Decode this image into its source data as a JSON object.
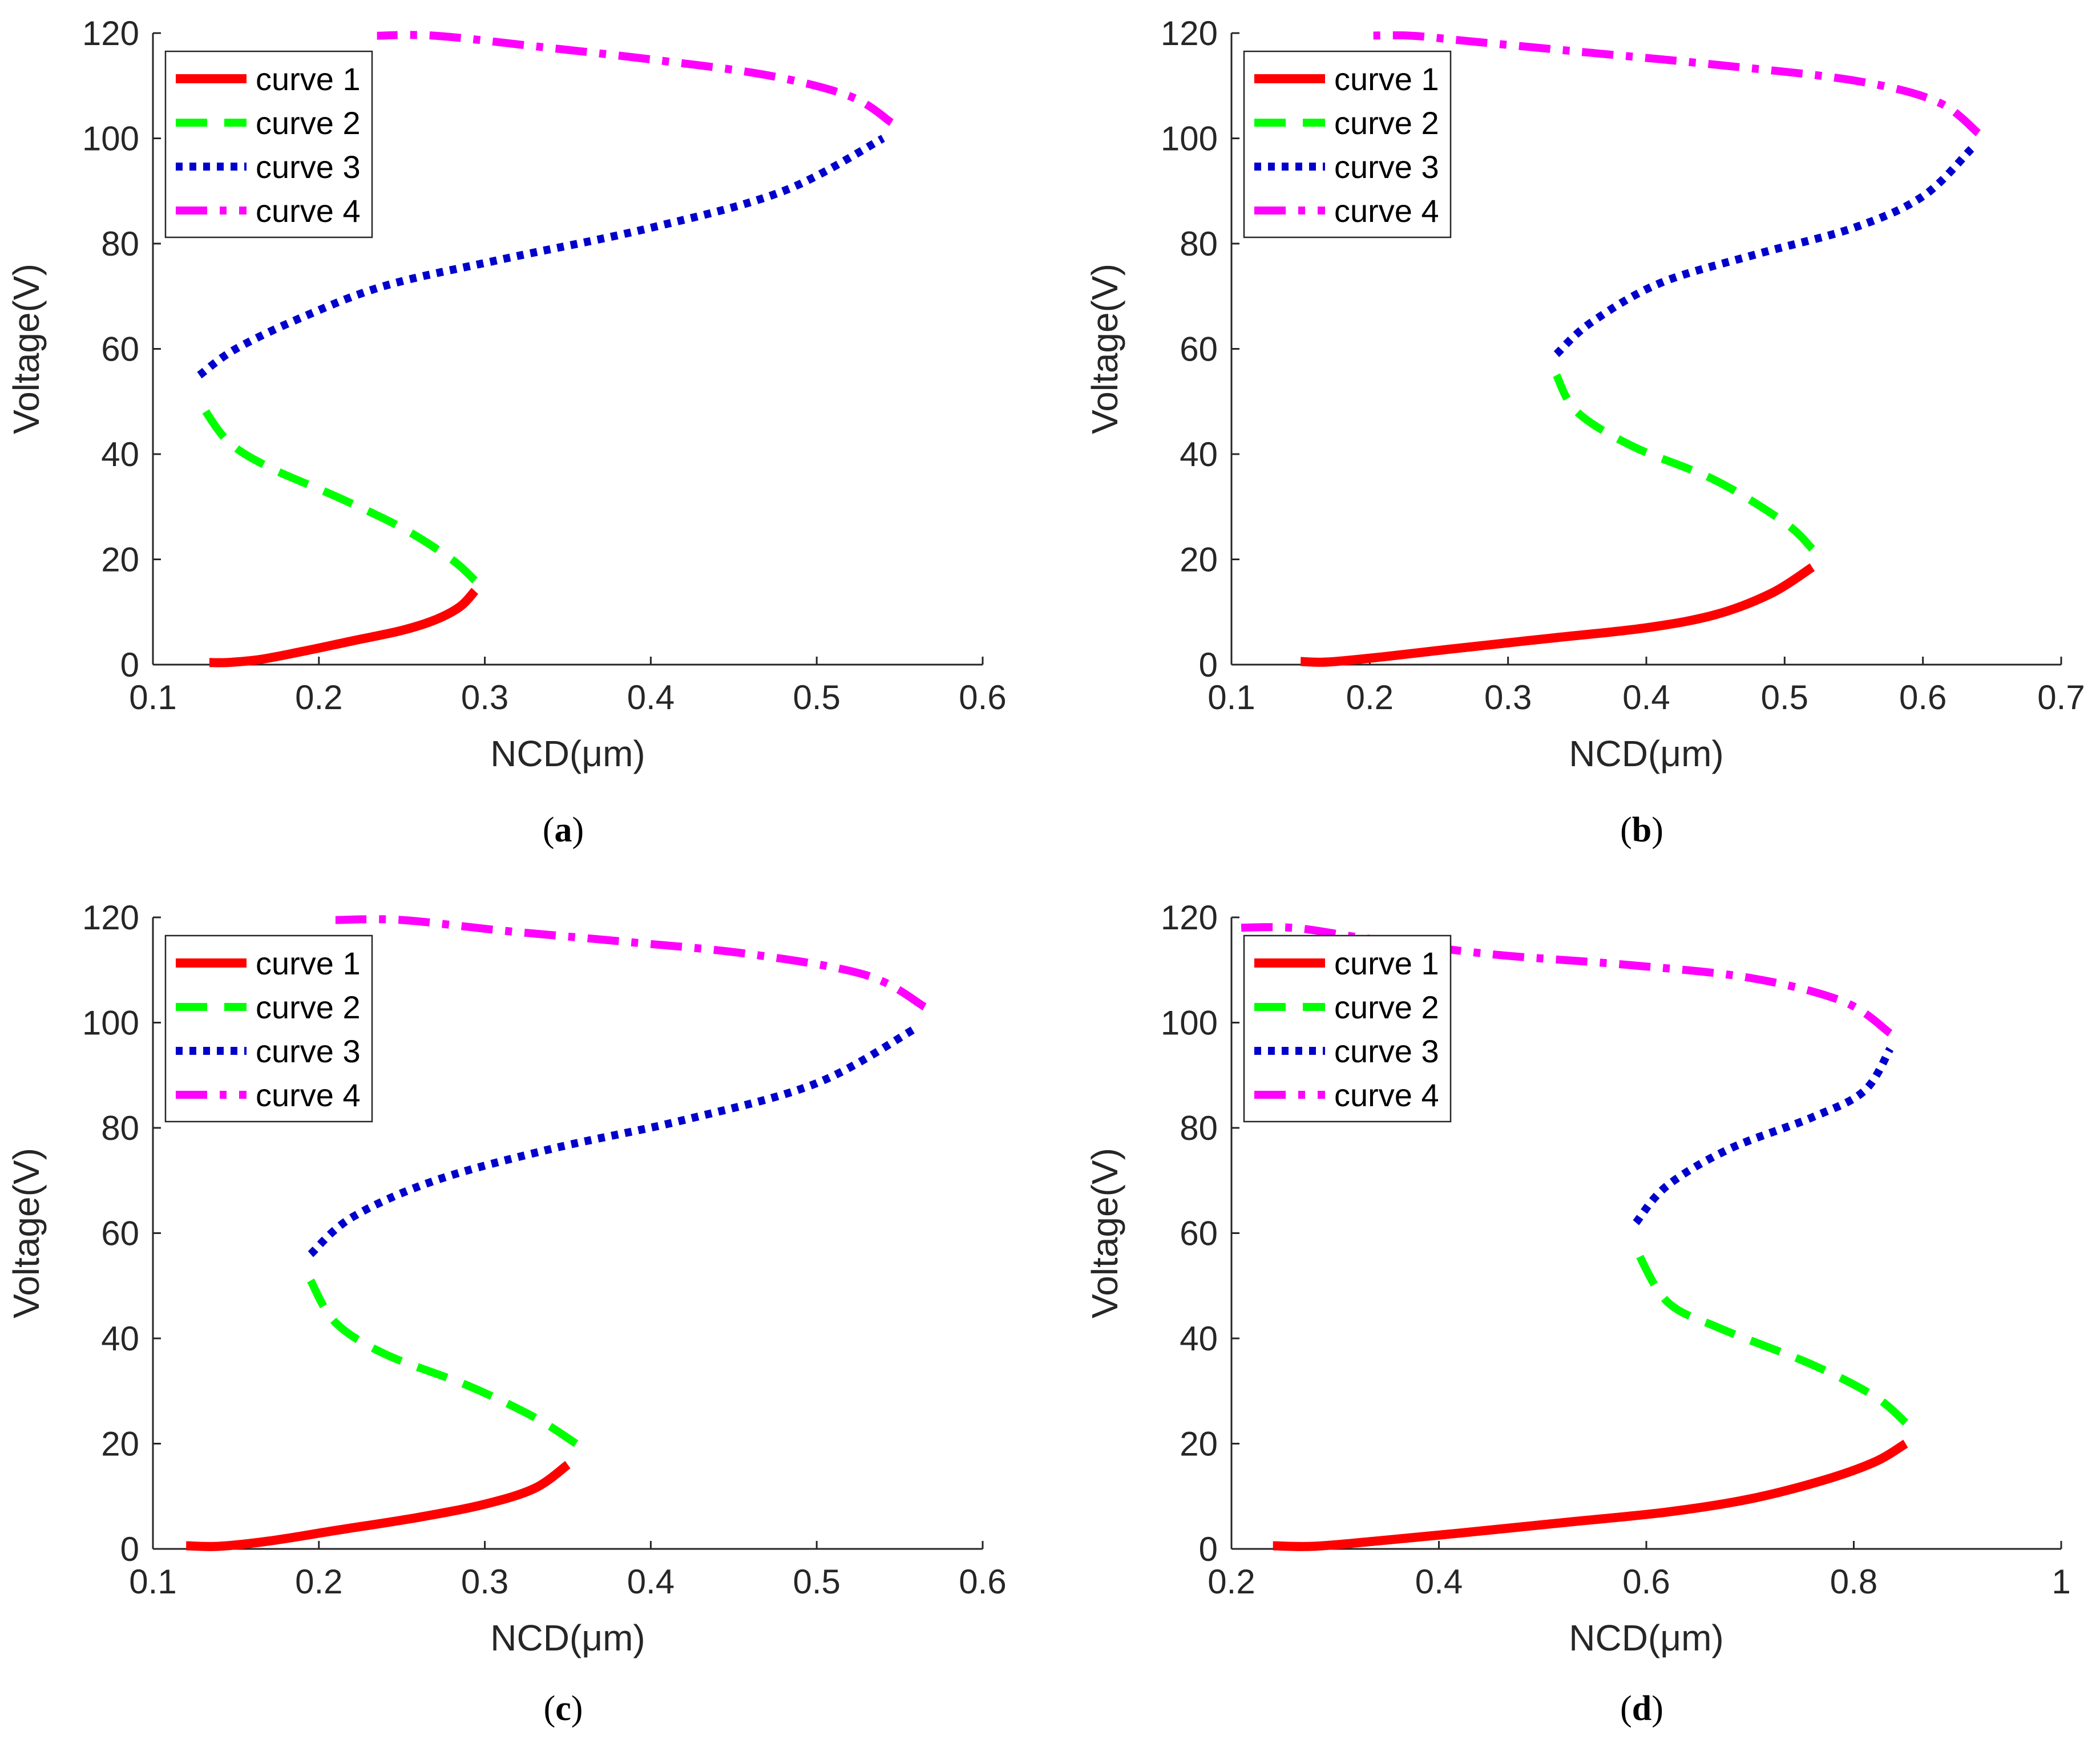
{
  "figure": {
    "axis_color": "#262626"
  },
  "chart_data": [
    {
      "id": "a",
      "type": "line",
      "caption": "a",
      "xlabel": "NCD(μm)",
      "ylabel": "Voltage(V)",
      "xlim": [
        0.1,
        0.6
      ],
      "ylim": [
        0,
        120
      ],
      "xticks": [
        0.1,
        0.2,
        0.3,
        0.4,
        0.5,
        0.6
      ],
      "xtick_labels": [
        "0.1",
        "0.2",
        "0.3",
        "0.4",
        "0.5",
        "0.6"
      ],
      "yticks": [
        0,
        20,
        40,
        60,
        80,
        100,
        120
      ],
      "ytick_labels": [
        "0",
        "20",
        "40",
        "60",
        "80",
        "100",
        "120"
      ],
      "legend_position": "top-left",
      "series": [
        {
          "name": "curve 1",
          "color": "#ff0000",
          "style": "solid",
          "x": [
            0.134,
            0.145,
            0.165,
            0.19,
            0.22,
            0.25,
            0.27,
            0.285,
            0.294
          ],
          "y": [
            0.4,
            0.4,
            1.0,
            2.5,
            4.5,
            6.5,
            8.5,
            11.0,
            14.0
          ]
        },
        {
          "name": "curve 2",
          "color": "#00ff00",
          "style": "dashed",
          "x": [
            0.294,
            0.28,
            0.25,
            0.21,
            0.17,
            0.145,
            0.128
          ],
          "y": [
            16.0,
            20.0,
            26.0,
            32.0,
            37.5,
            42.5,
            50.0
          ]
        },
        {
          "name": "curve 3",
          "color": "#0000cc",
          "style": "dotted",
          "x": [
            0.128,
            0.15,
            0.19,
            0.24,
            0.31,
            0.4,
            0.48,
            0.54
          ],
          "y": [
            55.0,
            60.0,
            66.0,
            72.0,
            77.0,
            83.0,
            90.0,
            100.0
          ]
        },
        {
          "name": "curve 4",
          "color": "#ff00ff",
          "style": "dashdot",
          "x": [
            0.545,
            0.52,
            0.47,
            0.4,
            0.33,
            0.27,
            0.235
          ],
          "y": [
            103.0,
            108.0,
            112.0,
            115.0,
            117.5,
            119.5,
            119.5
          ]
        }
      ]
    },
    {
      "id": "b",
      "type": "line",
      "caption": "b",
      "xlabel": "NCD(μm)",
      "ylabel": "Voltage(V)",
      "xlim": [
        0.1,
        0.7
      ],
      "ylim": [
        0,
        120
      ],
      "xticks": [
        0.1,
        0.2,
        0.3,
        0.4,
        0.5,
        0.6,
        0.7
      ],
      "xtick_labels": [
        "0.1",
        "0.2",
        "0.3",
        "0.4",
        "0.5",
        "0.6",
        "0.7"
      ],
      "yticks": [
        0,
        20,
        40,
        60,
        80,
        100,
        120
      ],
      "ytick_labels": [
        "0",
        "20",
        "40",
        "60",
        "80",
        "100",
        "120"
      ],
      "legend_position": "top-left",
      "series": [
        {
          "name": "curve 1",
          "color": "#ff0000",
          "style": "solid",
          "x": [
            0.15,
            0.17,
            0.21,
            0.26,
            0.33,
            0.4,
            0.45,
            0.49,
            0.52
          ],
          "y": [
            0.6,
            0.5,
            1.5,
            3.0,
            5.0,
            7.0,
            9.5,
            13.5,
            18.5
          ]
        },
        {
          "name": "curve 2",
          "color": "#00ff00",
          "style": "dashed",
          "x": [
            0.52,
            0.5,
            0.45,
            0.39,
            0.35,
            0.335
          ],
          "y": [
            22.0,
            27.0,
            35.0,
            41.5,
            48.0,
            55.0
          ]
        },
        {
          "name": "curve 3",
          "color": "#0000cc",
          "style": "dotted",
          "x": [
            0.335,
            0.36,
            0.41,
            0.48,
            0.55,
            0.6,
            0.635
          ],
          "y": [
            59.0,
            65.0,
            72.5,
            78.0,
            83.0,
            89.0,
            98.0
          ]
        },
        {
          "name": "curve 4",
          "color": "#ff00ff",
          "style": "dashdot",
          "x": [
            0.64,
            0.61,
            0.55,
            0.45,
            0.35,
            0.27,
            0.23,
            0.195
          ],
          "y": [
            101.0,
            107.0,
            111.0,
            114.0,
            116.5,
            118.5,
            119.5,
            119.5
          ]
        }
      ]
    },
    {
      "id": "c",
      "type": "line",
      "caption": "c",
      "xlabel": "NCD(μm)",
      "ylabel": "Voltage(V)",
      "xlim": [
        0.1,
        0.6
      ],
      "ylim": [
        0,
        120
      ],
      "xticks": [
        0.1,
        0.2,
        0.3,
        0.4,
        0.5,
        0.6
      ],
      "xtick_labels": [
        "0.1",
        "0.2",
        "0.3",
        "0.4",
        "0.5",
        "0.6"
      ],
      "yticks": [
        0,
        20,
        40,
        60,
        80,
        100,
        120
      ],
      "ytick_labels": [
        "0",
        "20",
        "40",
        "60",
        "80",
        "100",
        "120"
      ],
      "legend_position": "top-left",
      "series": [
        {
          "name": "curve 1",
          "color": "#ff0000",
          "style": "solid",
          "x": [
            0.12,
            0.14,
            0.17,
            0.21,
            0.26,
            0.3,
            0.33,
            0.35
          ],
          "y": [
            0.6,
            0.5,
            1.5,
            3.5,
            6.0,
            8.5,
            11.5,
            16.0
          ]
        },
        {
          "name": "curve 2",
          "color": "#00ff00",
          "style": "dashed",
          "x": [
            0.355,
            0.33,
            0.29,
            0.24,
            0.21,
            0.195
          ],
          "y": [
            20.0,
            25.0,
            31.0,
            37.0,
            43.0,
            51.0
          ]
        },
        {
          "name": "curve 3",
          "color": "#0000cc",
          "style": "dotted",
          "x": [
            0.195,
            0.22,
            0.27,
            0.34,
            0.42,
            0.5,
            0.56
          ],
          "y": [
            56.0,
            63.0,
            70.0,
            76.0,
            81.5,
            88.5,
            99.0
          ]
        },
        {
          "name": "curve 4",
          "color": "#ff00ff",
          "style": "dashdot",
          "x": [
            0.565,
            0.53,
            0.46,
            0.38,
            0.31,
            0.25,
            0.21
          ],
          "y": [
            103.0,
            109.0,
            113.0,
            115.5,
            117.5,
            119.5,
            119.5
          ]
        }
      ]
    },
    {
      "id": "d",
      "type": "line",
      "caption": "d",
      "xlabel": "NCD(μm)",
      "ylabel": "Voltage(V)",
      "xlim": [
        0.2,
        1.0
      ],
      "ylim": [
        0,
        120
      ],
      "xticks": [
        0.2,
        0.4,
        0.6,
        0.8,
        1.0
      ],
      "xtick_labels": [
        "0.2",
        "0.4",
        "0.6",
        "0.8",
        "1"
      ],
      "yticks": [
        0,
        20,
        40,
        60,
        80,
        100,
        120
      ],
      "ytick_labels": [
        "0",
        "20",
        "40",
        "60",
        "80",
        "100",
        "120"
      ],
      "legend_position": "top-left",
      "series": [
        {
          "name": "curve 1",
          "color": "#ff0000",
          "style": "solid",
          "x": [
            0.24,
            0.28,
            0.34,
            0.42,
            0.52,
            0.62,
            0.7,
            0.77,
            0.82,
            0.85
          ],
          "y": [
            0.6,
            0.5,
            1.5,
            3.0,
            5.0,
            7.0,
            9.5,
            13.0,
            16.5,
            20.0
          ]
        },
        {
          "name": "curve 2",
          "color": "#00ff00",
          "style": "dashed",
          "x": [
            0.85,
            0.82,
            0.76,
            0.67,
            0.62,
            0.59
          ],
          "y": [
            24.0,
            29.0,
            35.0,
            42.0,
            47.0,
            57.0
          ]
        },
        {
          "name": "curve 3",
          "color": "#0000cc",
          "style": "dotted",
          "x": [
            0.59,
            0.62,
            0.68,
            0.76,
            0.81,
            0.835
          ],
          "y": [
            62.0,
            69.0,
            76.0,
            82.0,
            87.0,
            95.0
          ]
        },
        {
          "name": "curve 4",
          "color": "#ff00ff",
          "style": "dashdot",
          "x": [
            0.835,
            0.79,
            0.7,
            0.58,
            0.45,
            0.33,
            0.26,
            0.2
          ],
          "y": [
            98.0,
            104.0,
            108.5,
            111.0,
            113.0,
            116.0,
            118.0,
            118.0
          ]
        }
      ]
    }
  ]
}
